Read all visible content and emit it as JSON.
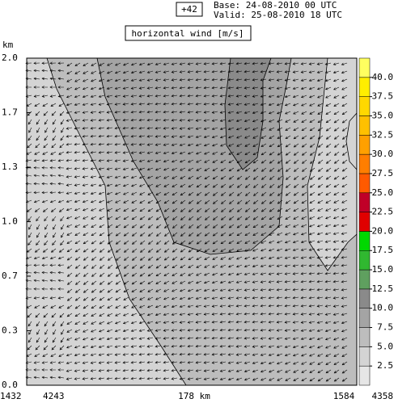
{
  "chart_data": {
    "type": "cross-section",
    "forecast_step": "+42",
    "base": "Base: 24-08-2010  00 UTC",
    "valid": "Valid: 25-08-2010  18 UTC",
    "title": "horizontal wind [m/s]",
    "y_label": "km",
    "ylim": [
      0,
      2.0
    ],
    "yticks": [
      {
        "value": 0,
        "label": "0.0"
      },
      {
        "value": 0.333,
        "label": "0.3"
      },
      {
        "value": 0.667,
        "label": "0.7"
      },
      {
        "value": 1.0,
        "label": "1.0"
      },
      {
        "value": 1.333,
        "label": "1.3"
      },
      {
        "value": 1.667,
        "label": "1.7"
      },
      {
        "value": 2.0,
        "label": "2.0"
      }
    ],
    "x_labels": [
      "1432",
      "4243",
      "178 km",
      "1584",
      "4358"
    ],
    "colorbar": {
      "lim": [
        0,
        42.5
      ],
      "ticks": [
        2.5,
        {
          "value": 5,
          "label": "5.0"
        },
        7.5,
        {
          "value": 10,
          "label": "10.0"
        },
        12.5,
        {
          "value": 15,
          "label": "15.0"
        },
        17.5,
        {
          "value": 20,
          "label": "20.0"
        },
        22.5,
        {
          "value": 25,
          "label": "25.0"
        },
        27.5,
        {
          "value": 30,
          "label": "30.0"
        },
        32.5,
        {
          "value": 35,
          "label": "35.0"
        },
        37.5,
        {
          "value": 40,
          "label": "40.0"
        }
      ],
      "colors": [
        "#e6e6e6",
        "#d4d4d4",
        "#bdbdbd",
        "#a4a4a4",
        "#8a8a8a",
        "#5fa05f",
        "#30b830",
        "#00d800",
        "#e00000",
        "#c00028",
        "#ff5a00",
        "#ff7e00",
        "#ffa000",
        "#ffc000",
        "#ffd800",
        "#ffee00",
        "#ffff60"
      ]
    }
  }
}
